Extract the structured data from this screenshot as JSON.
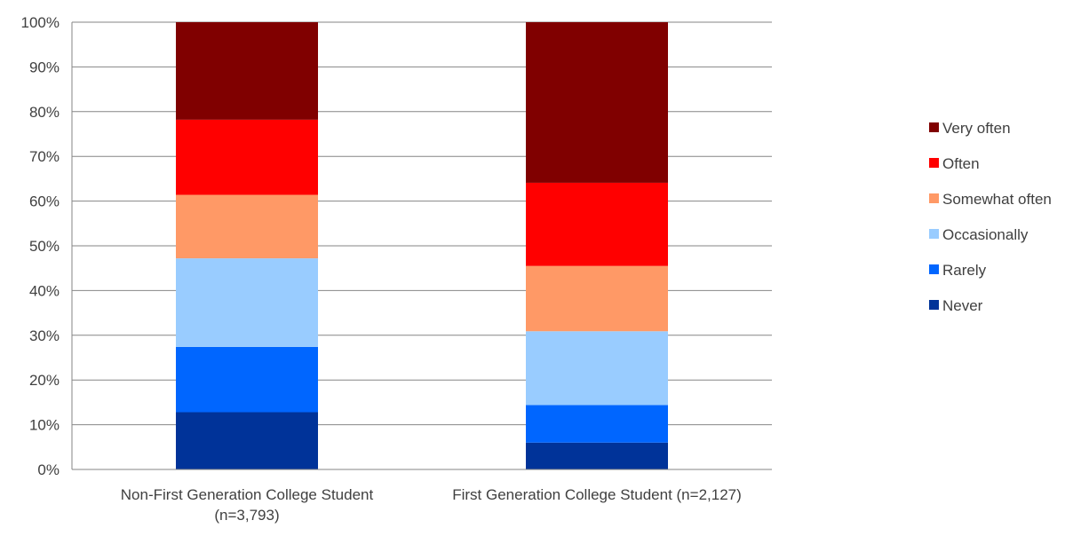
{
  "chart_data": {
    "type": "bar",
    "stacked": true,
    "percent": true,
    "title": "",
    "xlabel": "",
    "ylabel": "",
    "ylim": [
      0,
      100
    ],
    "yticks": [
      "0%",
      "10%",
      "20%",
      "30%",
      "40%",
      "50%",
      "60%",
      "70%",
      "80%",
      "90%",
      "100%"
    ],
    "grid": true,
    "legend_position": "right",
    "categories": [
      [
        "Non-First Generation College Student",
        "(n=3,793)"
      ],
      [
        "First Generation College Student (n=2,127)"
      ]
    ],
    "series": [
      {
        "name": "Never",
        "color": "#003399",
        "values": [
          12.8,
          6.0
        ]
      },
      {
        "name": "Rarely",
        "color": "#0066FF",
        "values": [
          14.6,
          8.4
        ]
      },
      {
        "name": "Occasionally",
        "color": "#99CCFF",
        "values": [
          19.8,
          16.5
        ]
      },
      {
        "name": "Somewhat often",
        "color": "#FF9966",
        "values": [
          14.2,
          14.6
        ]
      },
      {
        "name": "Often",
        "color": "#FF0000",
        "values": [
          16.8,
          18.6
        ]
      },
      {
        "name": "Very often",
        "color": "#800000",
        "values": [
          21.8,
          35.9
        ]
      }
    ]
  }
}
